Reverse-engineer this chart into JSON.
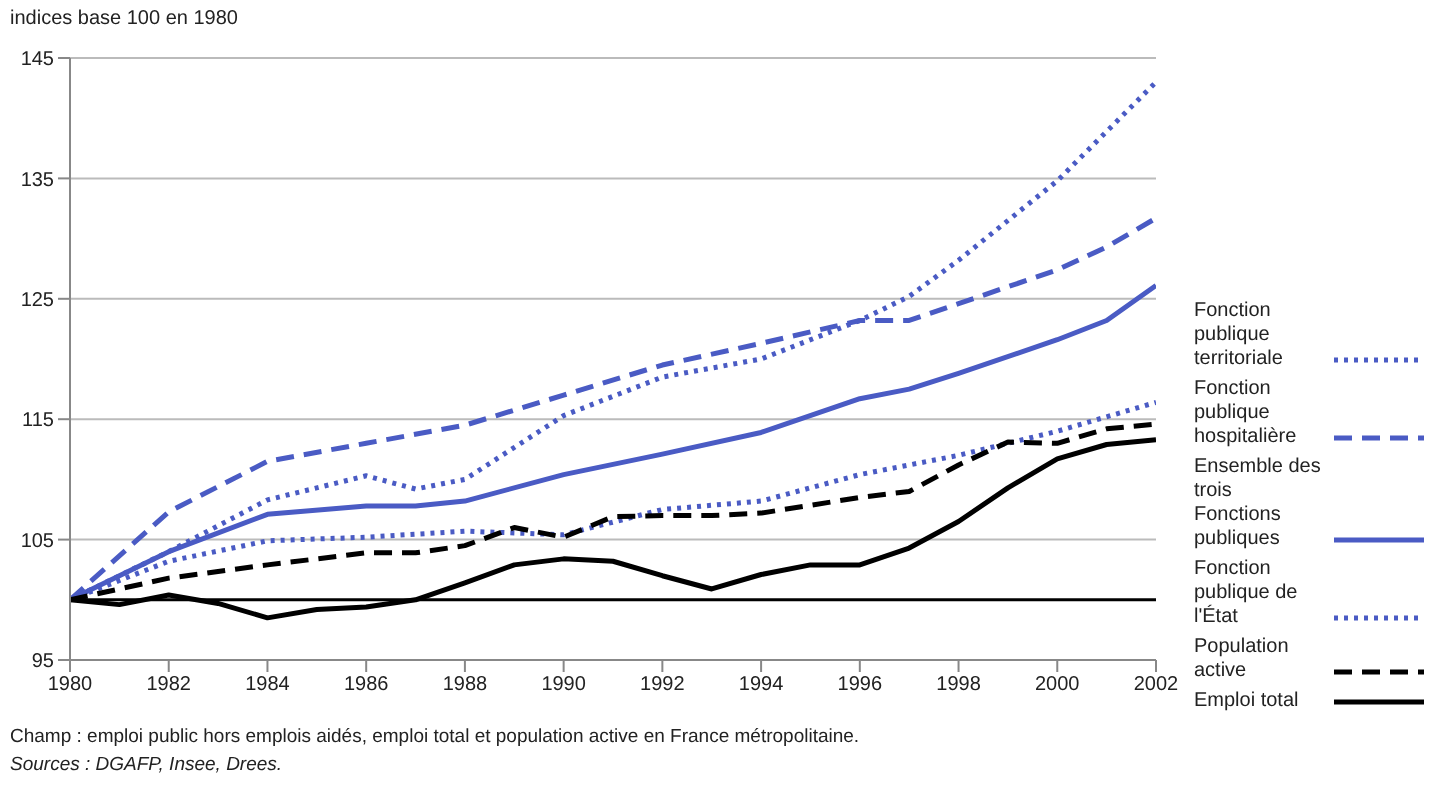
{
  "chart_data": {
    "type": "line",
    "ylabel": "indices base 100 en 1980",
    "xlim": [
      1980,
      2002
    ],
    "xticks": [
      1980,
      1982,
      1984,
      1986,
      1988,
      1990,
      1992,
      1994,
      1996,
      1998,
      2000,
      2002
    ],
    "ylim": [
      95,
      145
    ],
    "yticks": [
      95,
      105,
      115,
      125,
      135,
      145
    ],
    "grid": "y",
    "legend": "right",
    "marker": "none",
    "ref_lines": [
      {
        "axis": "y",
        "value": 100,
        "color": "#000000"
      }
    ],
    "series": [
      {
        "name": "Fonction publique territoriale",
        "color": "#4a5bc4",
        "line_style": "dotted",
        "x": [
          1980,
          1982,
          1984,
          1986,
          1987,
          1988,
          1990,
          1992,
          1994,
          1996,
          1997,
          1998,
          2000,
          2002
        ],
        "values": [
          100,
          104,
          108.3,
          110.3,
          109.2,
          110,
          115.3,
          118.5,
          120,
          123.2,
          125.2,
          128.2,
          134.8,
          143
        ]
      },
      {
        "name": "Fonction publique hospitalière",
        "color": "#4a5bc4",
        "line_style": "dashed",
        "x": [
          1980,
          1982,
          1984,
          1986,
          1988,
          1990,
          1992,
          1994,
          1996,
          1997,
          1998,
          2000,
          2001,
          2002
        ],
        "values": [
          100,
          107.3,
          111.5,
          113,
          114.5,
          117,
          119.5,
          121.3,
          123.2,
          123.2,
          124.6,
          127.4,
          129.3,
          131.7
        ]
      },
      {
        "name": "Ensemble des trois Fonctions publiques",
        "color": "#4a5bc4",
        "line_style": "solid",
        "x": [
          1980,
          1982,
          1984,
          1986,
          1987,
          1988,
          1990,
          1992,
          1994,
          1996,
          1997,
          1998,
          2000,
          2001,
          2002
        ],
        "values": [
          100,
          104,
          107.1,
          107.8,
          107.8,
          108.2,
          110.4,
          112.1,
          113.9,
          116.7,
          117.5,
          118.8,
          121.6,
          123.2,
          126.1
        ]
      },
      {
        "name": "Fonction publique de l'État",
        "color": "#4a5bc4",
        "line_style": "dotted",
        "x": [
          1980,
          1982,
          1984,
          1986,
          1988,
          1990,
          1992,
          1994,
          1996,
          1998,
          2000,
          2002
        ],
        "values": [
          100,
          103.2,
          104.9,
          105.2,
          105.7,
          105.4,
          107.5,
          108.2,
          110.4,
          112,
          114,
          116.4
        ]
      },
      {
        "name": "Population active",
        "color": "#000000",
        "line_style": "dashed",
        "x": [
          1980,
          1982,
          1984,
          1986,
          1987,
          1988,
          1989,
          1990,
          1991,
          1992,
          1993,
          1994,
          1996,
          1997,
          1998,
          1999,
          2000,
          2001,
          2002
        ],
        "values": [
          100,
          101.8,
          102.9,
          103.9,
          103.9,
          104.5,
          106,
          105.2,
          106.9,
          107,
          107,
          107.2,
          108.5,
          109,
          111.2,
          113.1,
          113,
          114.2,
          114.6
        ]
      },
      {
        "name": "Emploi total",
        "color": "#000000",
        "line_style": "solid",
        "x": [
          1980,
          1981,
          1982,
          1983,
          1984,
          1985,
          1986,
          1987,
          1988,
          1989,
          1990,
          1991,
          1992,
          1993,
          1994,
          1995,
          1996,
          1997,
          1998,
          1999,
          2000,
          2001,
          2002
        ],
        "values": [
          100,
          99.6,
          100.4,
          99.7,
          98.5,
          99.2,
          99.4,
          100,
          101.4,
          102.9,
          103.4,
          103.2,
          102,
          100.9,
          102.1,
          102.9,
          102.9,
          104.3,
          106.5,
          109.3,
          111.7,
          112.9,
          113.3
        ]
      }
    ],
    "annotations": [
      "Champ : emploi public hors emplois aidés, emploi total et population active en France métropolitaine.",
      "Sources : DGAFP, Insee, Drees."
    ]
  }
}
